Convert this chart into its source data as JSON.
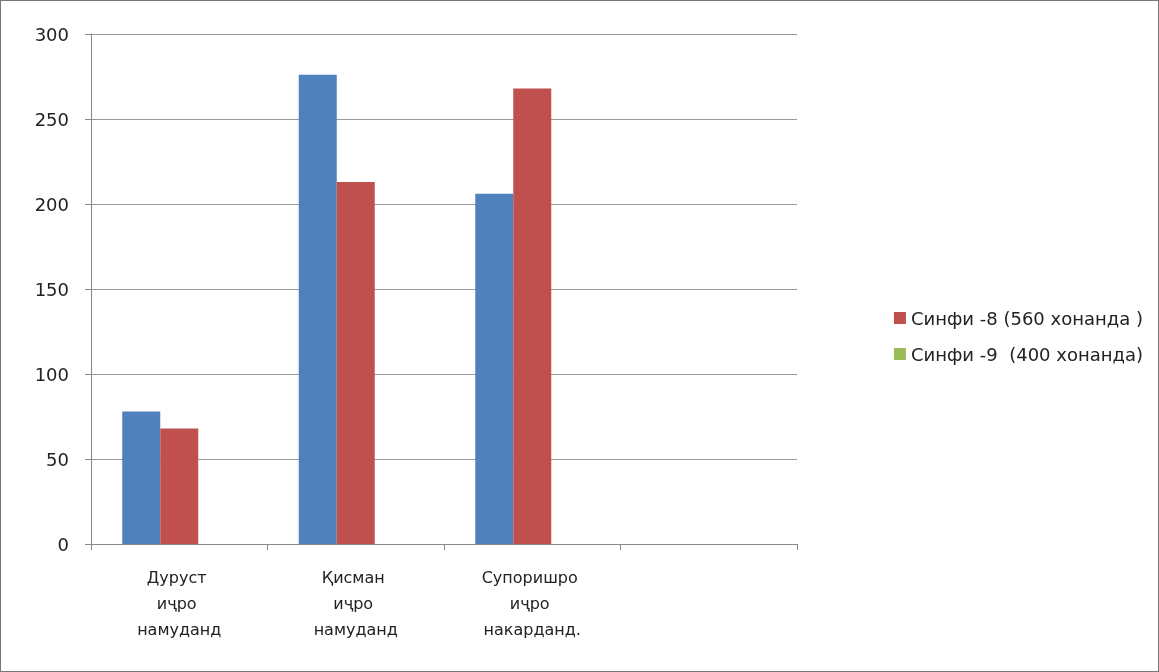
{
  "chart_data": {
    "type": "bar",
    "categories": [
      "Дуруст иҷро намуданд",
      "Қисман иҷро намуданд",
      "Супоришро иҷро накарданд.",
      null
    ],
    "series": [
      {
        "color": "#4f81bd",
        "values": [
          78,
          276,
          206,
          null
        ]
      },
      {
        "name": "Синфи -8 (560 хонанда )",
        "color": "#c0504d",
        "values": [
          68,
          213,
          268,
          null
        ]
      },
      {
        "name": "Синфи -9  (400 хонанда)",
        "color": "#9bbb59",
        "values": [
          null,
          null,
          null,
          null
        ]
      }
    ],
    "ylim": [
      0,
      300
    ],
    "yticks": [
      0,
      50,
      100,
      150,
      200,
      250,
      300
    ],
    "grid": "y",
    "legend": "right"
  }
}
